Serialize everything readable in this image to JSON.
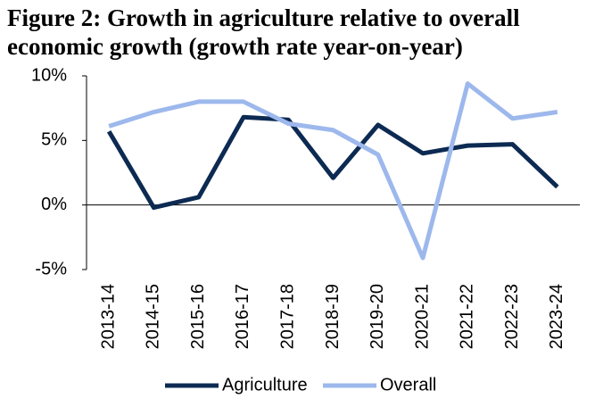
{
  "chart_data": {
    "type": "line",
    "title": "Figure 2: Growth in agriculture relative to overall economic growth (growth rate year-on-year)",
    "categories": [
      "2013-14",
      "2014-15",
      "2015-16",
      "2016-17",
      "2017-18",
      "2018-19",
      "2019-20",
      "2020-21",
      "2021-22",
      "2022-23",
      "2023-24"
    ],
    "series": [
      {
        "name": "Agriculture",
        "color": "#0c2a52",
        "values": [
          5.7,
          -0.2,
          0.6,
          6.8,
          6.6,
          2.1,
          6.2,
          4.0,
          4.6,
          4.7,
          1.4
        ]
      },
      {
        "name": "Overall",
        "color": "#9db8ec",
        "values": [
          6.1,
          7.2,
          8.0,
          8.0,
          6.3,
          5.8,
          3.9,
          -4.1,
          9.4,
          6.7,
          7.2
        ]
      }
    ],
    "ylim": [
      -5,
      10
    ],
    "yticks": [
      {
        "value": -5,
        "label": "-5%"
      },
      {
        "value": 0,
        "label": "0%"
      },
      {
        "value": 5,
        "label": "5%"
      },
      {
        "value": 10,
        "label": "10%"
      }
    ],
    "legend": "bottom"
  }
}
